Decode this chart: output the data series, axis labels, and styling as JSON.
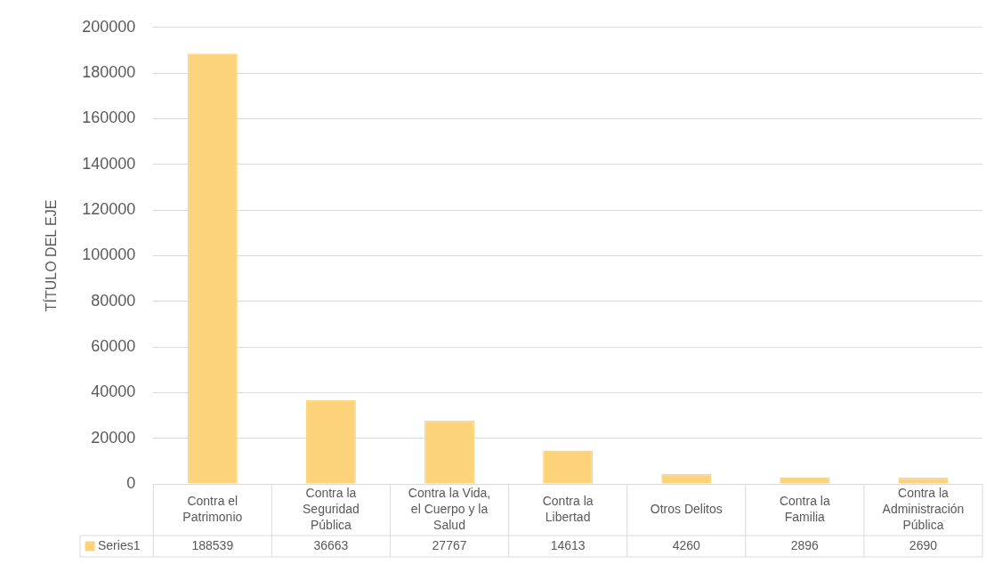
{
  "chart_data": {
    "type": "bar",
    "ylabel": "TÍTULO DEL EJE",
    "categories": [
      "Contra el Patrimonio",
      "Contra la Seguridad Pública",
      "Contra la Vida, el Cuerpo y la Salud",
      "Contra la Libertad",
      "Otros Delitos",
      "Contra la Familia",
      "Contra la Administración Pública"
    ],
    "series": [
      {
        "name": "Series1",
        "color": "#fcd27a",
        "values": [
          188539,
          36663,
          27767,
          14613,
          4260,
          2896,
          2690
        ]
      }
    ],
    "ylim": [
      0,
      200000
    ],
    "yticks": [
      0,
      20000,
      40000,
      60000,
      80000,
      100000,
      120000,
      140000,
      160000,
      180000,
      200000
    ],
    "grid": "y",
    "data_labels": true
  }
}
